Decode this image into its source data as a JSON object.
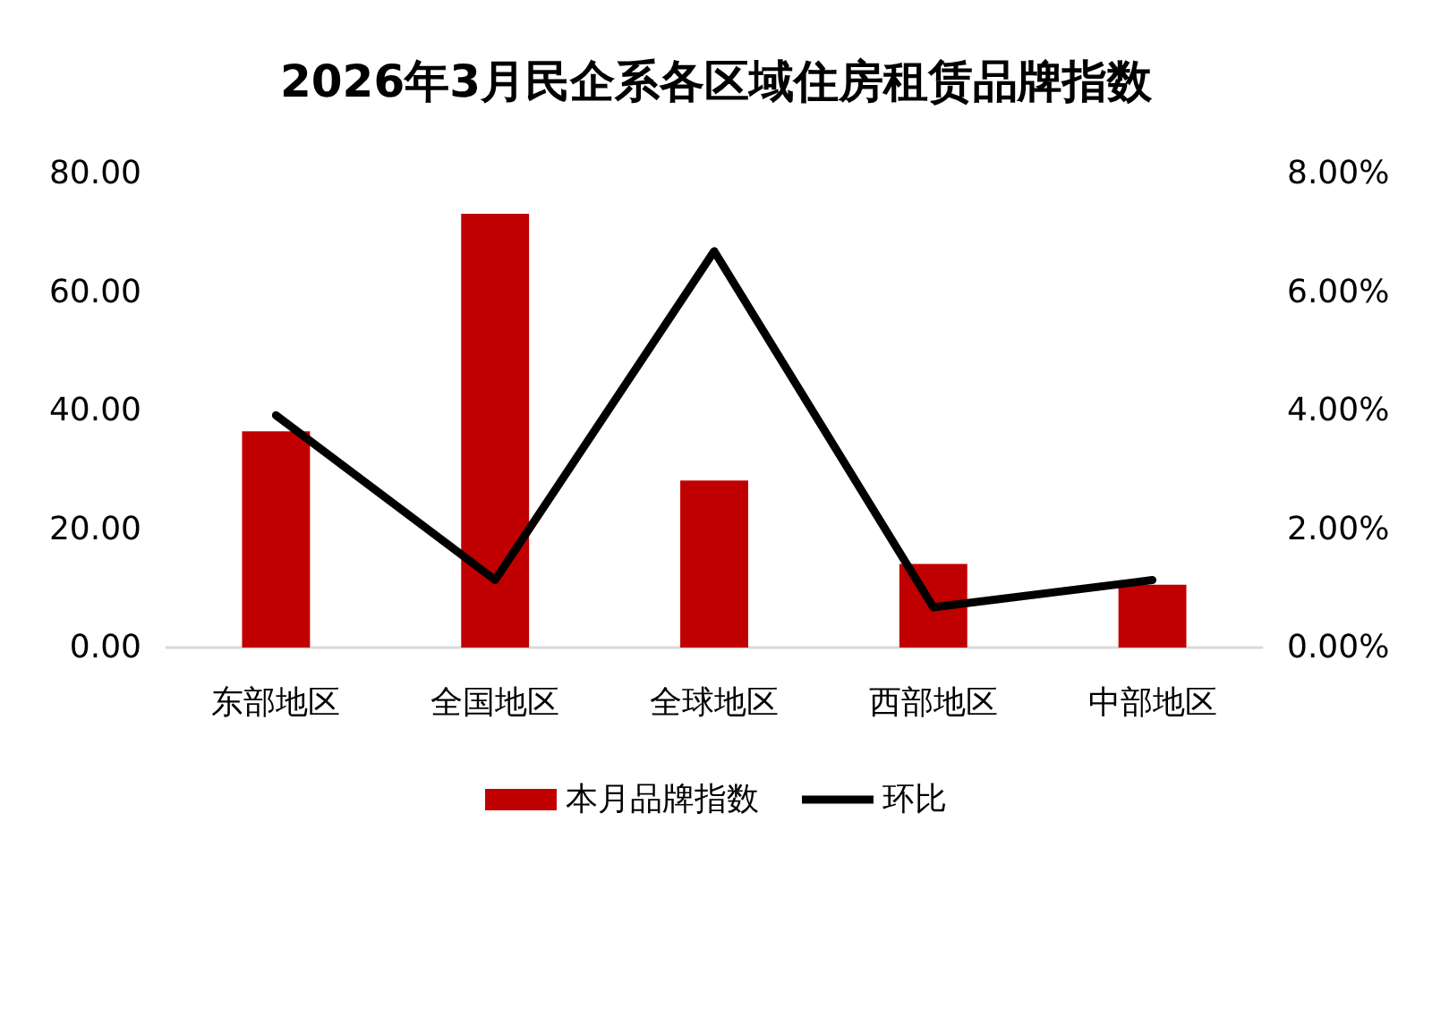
{
  "chart_data": {
    "type": "bar",
    "title": "2026年3月民企系各区域住房租赁品牌指数",
    "categories": [
      "东部地区",
      "全国地区",
      "全球地区",
      "西部地区",
      "中部地区"
    ],
    "series": [
      {
        "name": "本月品牌指数",
        "color": "#c00000",
        "values": [
          36.5,
          73.2,
          28.2,
          14.1,
          10.6
        ]
      },
      {
        "name": "环比",
        "type": "line",
        "axis": "y2",
        "color": "#000000",
        "values": [
          3.92,
          1.14,
          6.69,
          0.68,
          1.14
        ]
      }
    ],
    "ylim": [
      0,
      80
    ],
    "yticks": [
      {
        "value": 0,
        "label": "0.00"
      },
      {
        "value": 20,
        "label": "20.00"
      },
      {
        "value": 40,
        "label": "40.00"
      },
      {
        "value": 60,
        "label": "60.00"
      },
      {
        "value": 80,
        "label": "80.00"
      }
    ],
    "y2lim": [
      0,
      8
    ],
    "y2ticks": [
      {
        "value": 0,
        "label": "0.00%"
      },
      {
        "value": 2,
        "label": "2.00%"
      },
      {
        "value": 4,
        "label": "4.00%"
      },
      {
        "value": 6,
        "label": "6.00%"
      },
      {
        "value": 8,
        "label": "8.00%"
      }
    ],
    "grid": false,
    "legend": "bottom",
    "marker": "none",
    "line_style": "solid"
  }
}
